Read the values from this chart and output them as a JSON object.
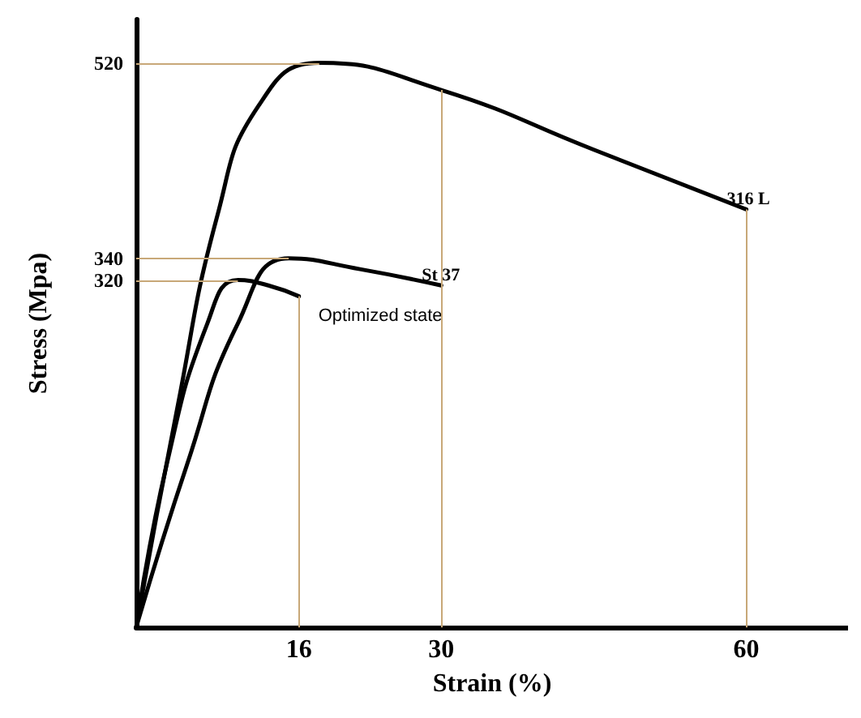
{
  "chart_data": {
    "type": "line",
    "xlabel": "Strain (%)",
    "ylabel": "Stress (Mpa)",
    "series": [
      {
        "name": "316 L",
        "color": "#000000",
        "x": [
          0,
          4,
          8,
          12,
          18,
          30,
          45,
          60
        ],
        "values": [
          0,
          200,
          380,
          480,
          520,
          495,
          440,
          385
        ]
      },
      {
        "name": "St 37",
        "color": "#000000",
        "x": [
          0,
          5,
          10,
          15,
          22,
          30
        ],
        "values": [
          0,
          150,
          280,
          340,
          330,
          315
        ]
      },
      {
        "name": "Optimized state",
        "color": "#000000",
        "x": [
          0,
          3,
          7,
          10,
          13,
          16
        ],
        "values": [
          0,
          150,
          280,
          320,
          315,
          305
        ]
      }
    ],
    "xlim": [
      0,
      70
    ],
    "ylim": [
      0,
      560
    ],
    "xticks": [
      16,
      30,
      60
    ],
    "yticks": [
      320,
      340,
      520
    ],
    "ref_lines": [
      {
        "axis": "y",
        "value": 520,
        "color": "#c8a878"
      },
      {
        "axis": "y",
        "value": 340,
        "color": "#c8a878"
      },
      {
        "axis": "y",
        "value": 320,
        "color": "#c8a878"
      },
      {
        "axis": "x",
        "value": 16,
        "color": "#c8a878"
      },
      {
        "axis": "x",
        "value": 30,
        "color": "#c8a878"
      },
      {
        "axis": "x",
        "value": 60,
        "color": "#c8a878"
      }
    ],
    "grid": false,
    "legend": false,
    "marker": "none",
    "line_style": "solid"
  }
}
